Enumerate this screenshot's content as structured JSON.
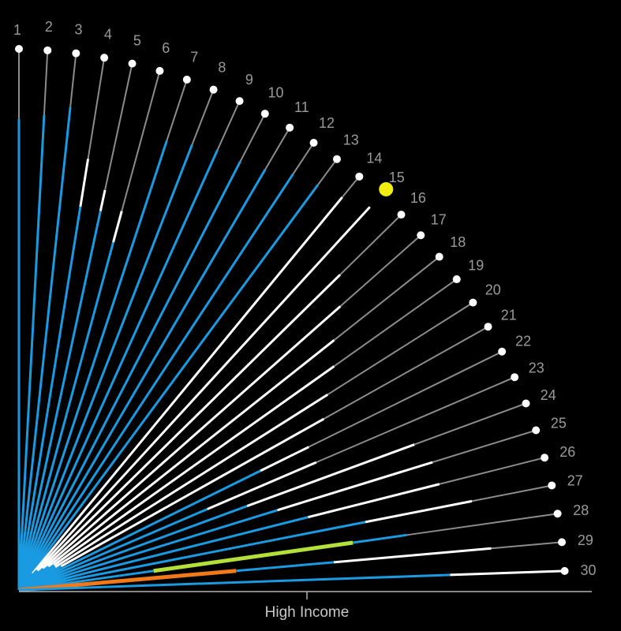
{
  "chart_data": {
    "type": "radial-fan",
    "xlabel": "High Income",
    "colors": {
      "background": "#000000",
      "blue": "#1a9ae0",
      "white": "#ffffff",
      "gray": "#8c8c8c",
      "orange": "#f07a1a",
      "lime": "#b4e03a",
      "highlight": "#f2ef10",
      "axis": "#b4b4b4"
    },
    "spokes": [
      {
        "label": "1",
        "segments": [
          [
            "blue",
            0.87
          ],
          [
            "gray",
            1.0
          ]
        ]
      },
      {
        "label": "2",
        "segments": [
          [
            "blue",
            0.88
          ],
          [
            "gray",
            1.0
          ]
        ]
      },
      {
        "label": "3",
        "segments": [
          [
            "blue",
            0.9
          ],
          [
            "gray",
            1.0
          ]
        ]
      },
      {
        "label": "4",
        "segments": [
          [
            "blue",
            0.72
          ],
          [
            "white",
            0.81
          ],
          [
            "gray",
            1.0
          ]
        ]
      },
      {
        "label": "5",
        "segments": [
          [
            "blue",
            0.72
          ],
          [
            "white",
            0.76
          ],
          [
            "gray",
            1.0
          ]
        ]
      },
      {
        "label": "6",
        "segments": [
          [
            "blue",
            0.67
          ],
          [
            "white",
            0.73
          ],
          [
            "gray",
            1.0
          ]
        ]
      },
      {
        "label": "7",
        "segments": [
          [
            "blue",
            0.88
          ],
          [
            "gray",
            1.0
          ]
        ]
      },
      {
        "label": "8",
        "segments": [
          [
            "blue",
            0.89
          ],
          [
            "gray",
            1.0
          ]
        ]
      },
      {
        "label": "9",
        "segments": [
          [
            "blue",
            0.9
          ],
          [
            "gray",
            1.0
          ]
        ]
      },
      {
        "label": "10",
        "segments": [
          [
            "blue",
            0.9
          ],
          [
            "gray",
            1.0
          ]
        ]
      },
      {
        "label": "11",
        "segments": [
          [
            "blue",
            0.91
          ],
          [
            "gray",
            1.0
          ]
        ]
      },
      {
        "label": "12",
        "segments": [
          [
            "blue",
            0.93
          ],
          [
            "gray",
            1.0
          ]
        ]
      },
      {
        "label": "13",
        "segments": [
          [
            "blue",
            0.94
          ],
          [
            "gray",
            1.0
          ]
        ]
      },
      {
        "label": "14",
        "segments": [
          [
            "blue",
            0.04
          ],
          [
            "white",
            0.95
          ],
          [
            "gray",
            1.0
          ]
        ]
      },
      {
        "label": "15",
        "segments": [
          [
            "blue",
            0.05
          ],
          [
            "white",
            0.97
          ]
        ],
        "highlight": true
      },
      {
        "label": "16",
        "segments": [
          [
            "blue",
            0.05
          ],
          [
            "white",
            0.84
          ],
          [
            "gray",
            1.0
          ]
        ]
      },
      {
        "label": "17",
        "segments": [
          [
            "blue",
            0.06
          ],
          [
            "white",
            0.8
          ],
          [
            "gray",
            1.0
          ]
        ]
      },
      {
        "label": "18",
        "segments": [
          [
            "blue",
            0.07
          ],
          [
            "white",
            0.75
          ],
          [
            "gray",
            1.0
          ]
        ]
      },
      {
        "label": "19",
        "segments": [
          [
            "blue",
            0.08
          ],
          [
            "white",
            0.72
          ],
          [
            "gray",
            1.0
          ]
        ]
      },
      {
        "label": "20",
        "segments": [
          [
            "blue",
            0.08
          ],
          [
            "white",
            0.68
          ],
          [
            "gray",
            1.0
          ]
        ]
      },
      {
        "label": "21",
        "segments": [
          [
            "blue",
            0.09
          ],
          [
            "white",
            0.65
          ],
          [
            "gray",
            1.0
          ]
        ]
      },
      {
        "label": "22",
        "segments": [
          [
            "blue",
            0.5
          ],
          [
            "white",
            0.6
          ],
          [
            "gray",
            1.0
          ]
        ]
      },
      {
        "label": "23",
        "segments": [
          [
            "blue",
            0.38
          ],
          [
            "white",
            0.6
          ],
          [
            "gray",
            1.0
          ]
        ]
      },
      {
        "label": "24",
        "segments": [
          [
            "blue",
            0.45
          ],
          [
            "white",
            0.78
          ],
          [
            "gray",
            1.0
          ]
        ]
      },
      {
        "label": "25",
        "segments": [
          [
            "blue",
            0.5
          ],
          [
            "white",
            0.8
          ],
          [
            "gray",
            1.0
          ]
        ]
      },
      {
        "label": "26",
        "segments": [
          [
            "blue",
            0.55
          ],
          [
            "white",
            0.8
          ],
          [
            "gray",
            1.0
          ]
        ]
      },
      {
        "label": "27",
        "segments": [
          [
            "blue",
            0.65
          ],
          [
            "white",
            0.85
          ],
          [
            "gray",
            1.0
          ]
        ]
      },
      {
        "label": "28",
        "segments": [
          [
            "blue",
            0.25
          ],
          [
            "lime",
            0.62
          ],
          [
            "blue",
            0.72
          ],
          [
            "gray",
            1.0
          ]
        ]
      },
      {
        "label": "29",
        "segments": [
          [
            "orange",
            0.4
          ],
          [
            "blue",
            0.58
          ],
          [
            "white",
            0.87
          ],
          [
            "gray",
            1.0
          ]
        ]
      },
      {
        "label": "30",
        "segments": [
          [
            "blue",
            0.79
          ],
          [
            "white",
            1.0
          ]
        ]
      }
    ]
  }
}
